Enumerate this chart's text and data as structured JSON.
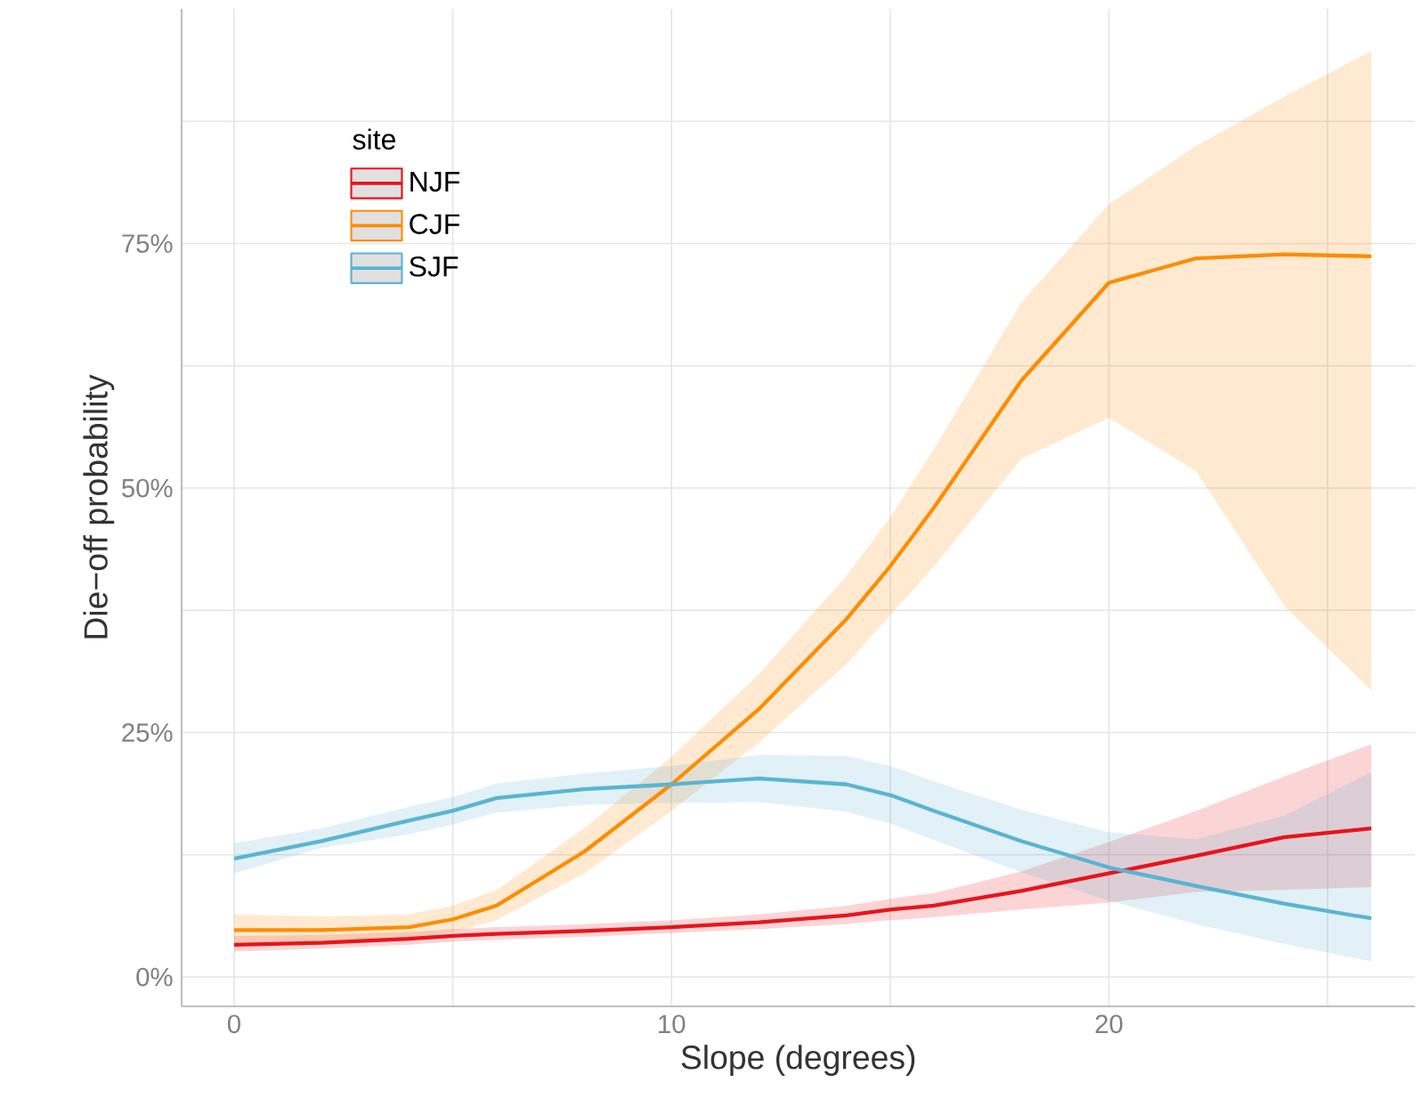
{
  "chart_data": {
    "type": "line",
    "xlabel": "Slope (degrees)",
    "ylabel": "Die−off probability",
    "legend_title": "site",
    "x": [
      0,
      2,
      4,
      5,
      6,
      8,
      10,
      12,
      14,
      15,
      16,
      18,
      20,
      22,
      24,
      26
    ],
    "series": [
      {
        "name": "NJF",
        "color": "#e8141c",
        "values": [
          3.3,
          3.5,
          3.9,
          4.2,
          4.4,
          4.7,
          5.1,
          5.6,
          6.3,
          6.9,
          7.3,
          8.8,
          10.6,
          12.4,
          14.3,
          15.2
        ],
        "lower": [
          2.6,
          2.9,
          3.3,
          3.6,
          3.8,
          4.1,
          4.5,
          4.9,
          5.4,
          5.8,
          6.1,
          6.9,
          7.6,
          8.7,
          8.9,
          9.2
        ],
        "upper": [
          4.2,
          4.3,
          4.6,
          4.9,
          5.1,
          5.4,
          5.8,
          6.4,
          7.3,
          8,
          8.6,
          10.8,
          13.8,
          17,
          20.5,
          23.8
        ]
      },
      {
        "name": "CJF",
        "color": "#ff8c00",
        "values": [
          4.8,
          4.8,
          5.1,
          5.9,
          7.3,
          12.8,
          19.7,
          27.4,
          36.6,
          42,
          48,
          61,
          71,
          73.5,
          73.9,
          73.7
        ],
        "lower": [
          3.5,
          3.6,
          4,
          4.6,
          5.8,
          10.6,
          17,
          24,
          32,
          37,
          42,
          53,
          57.2,
          51.7,
          38,
          29.3
        ],
        "upper": [
          6.4,
          6.2,
          6.4,
          7.3,
          8.9,
          15.2,
          22.5,
          31,
          41,
          47,
          54,
          69,
          79,
          85,
          90,
          94.7
        ]
      },
      {
        "name": "SJF",
        "color": "#5ab4d2",
        "values": [
          12.1,
          13.9,
          16,
          17,
          18.3,
          19.2,
          19.7,
          20.3,
          19.7,
          18.6,
          17,
          13.9,
          11.2,
          9.3,
          7.5,
          6
        ],
        "lower": [
          10.6,
          13.2,
          14.6,
          15.6,
          16.8,
          17.6,
          17.8,
          17.9,
          16.9,
          15.7,
          14,
          10.7,
          7.8,
          5.4,
          3.4,
          1.6
        ],
        "upper": [
          13.7,
          15.2,
          17.4,
          18.4,
          19.8,
          20.8,
          21.6,
          22.7,
          22.6,
          21.6,
          20,
          17.1,
          14.8,
          14.1,
          16.5,
          21
        ]
      }
    ],
    "xlim": [
      -1.2,
      27
    ],
    "ylim": [
      -3,
      99
    ],
    "xticks": [
      0,
      {
        "value": 5,
        "label": null
      },
      10,
      {
        "value": 15,
        "label": null
      },
      20,
      {
        "value": 25,
        "label": null
      }
    ],
    "yticks": [
      {
        "value": 0,
        "label": "0%"
      },
      {
        "value": 12.5,
        "label": null
      },
      {
        "value": 25,
        "label": "25%"
      },
      {
        "value": 37.5,
        "label": null
      },
      {
        "value": 50,
        "label": "50%"
      },
      {
        "value": 62.5,
        "label": null
      },
      {
        "value": 75,
        "label": "75%"
      },
      {
        "value": 87.5,
        "label": null
      }
    ],
    "grid": true,
    "legend": "top left",
    "marker": "none",
    "line_style": "solid"
  }
}
